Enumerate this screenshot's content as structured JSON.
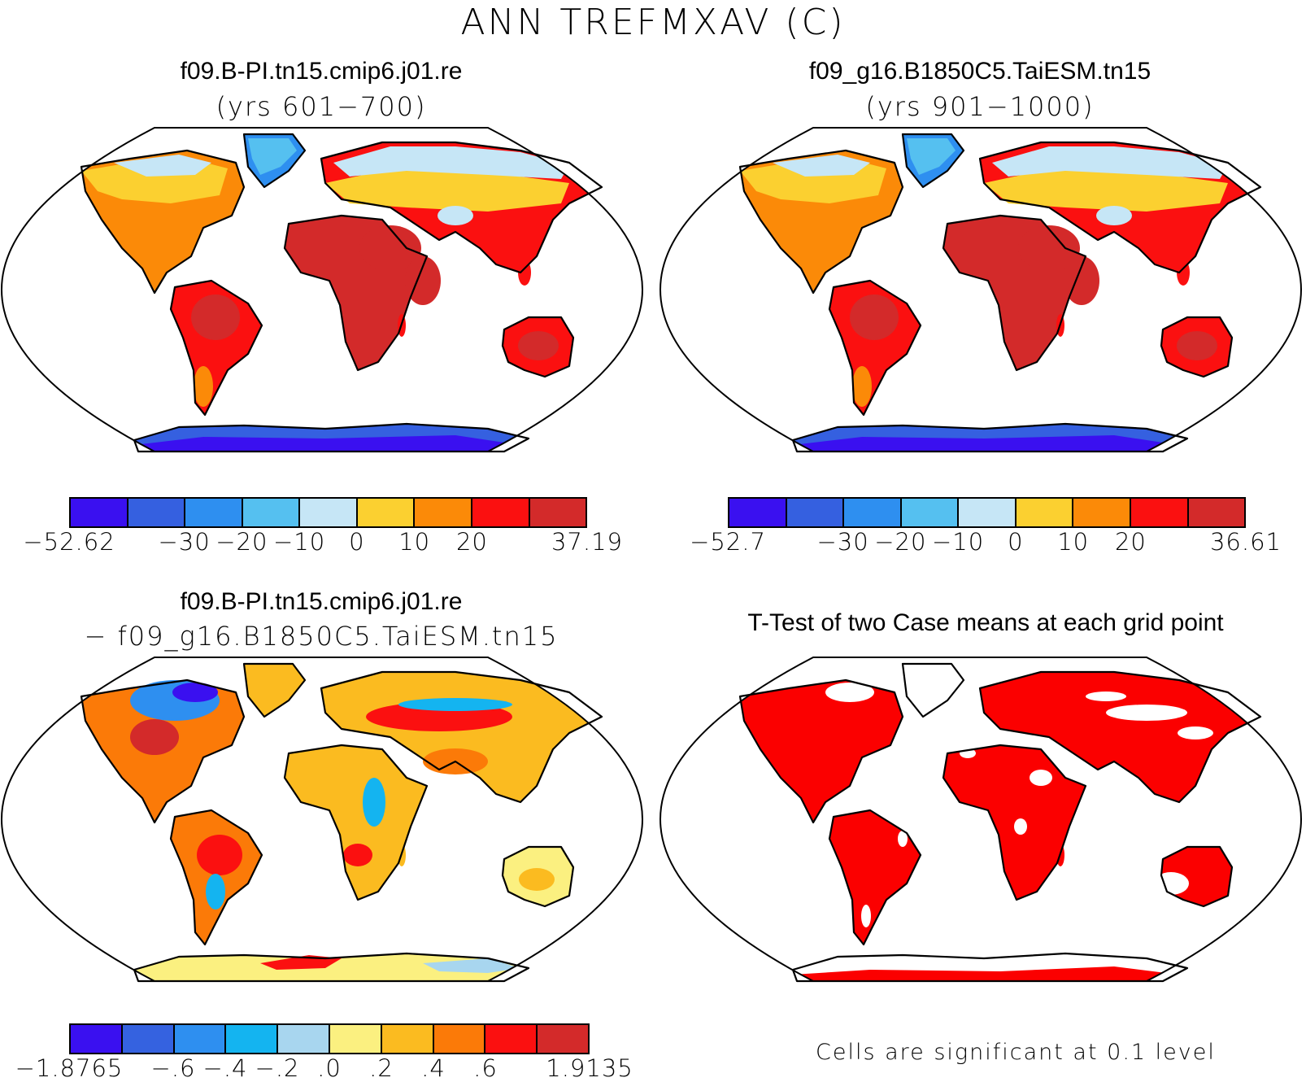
{
  "title": "ANN TREFMXAV (C)",
  "colors": {
    "temp": [
      "#3a10f0",
      "#3560e0",
      "#2e8ff0",
      "#55c0f0",
      "#c6e6f6",
      "#fbd030",
      "#fb8a08",
      "#fb1010",
      "#d32a2a"
    ],
    "diff": [
      "#3a10f0",
      "#3562e0",
      "#2e8ff0",
      "#14b4f0",
      "#a8d6ef",
      "#fbf080",
      "#fbbb20",
      "#fb7a08",
      "#fb1010",
      "#d32a2a"
    ],
    "sig": "#fb0000",
    "coast": "#000000"
  },
  "panels": {
    "top_left": {
      "title": "f09.B-PI.tn15.cmip6.j01.re",
      "subtitle": "(yrs 601−700)",
      "colorbar_labels": [
        "−52.62",
        "−30",
        "−20",
        "−10",
        "0",
        "10",
        "20",
        "37.19"
      ]
    },
    "top_right": {
      "title": "f09_g16.B1850C5.TaiESM.tn15",
      "subtitle": "(yrs 901−1000)",
      "colorbar_labels": [
        "−52.7",
        "−30",
        "−20",
        "−10",
        "0",
        "10",
        "20",
        "36.61"
      ]
    },
    "bottom_left": {
      "title": "f09.B-PI.tn15.cmip6.j01.re",
      "subtitle": "− f09_g16.B1850C5.TaiESM.tn15",
      "colorbar_labels": [
        "−1.8765",
        "−.6",
        "−.4",
        "−.2",
        ".0",
        ".2",
        ".4",
        ".6",
        "1.9135"
      ]
    },
    "bottom_right": {
      "title": "T-Test of two Case means at each grid point",
      "footnote": "Cells are significant at 0.1 level"
    }
  }
}
